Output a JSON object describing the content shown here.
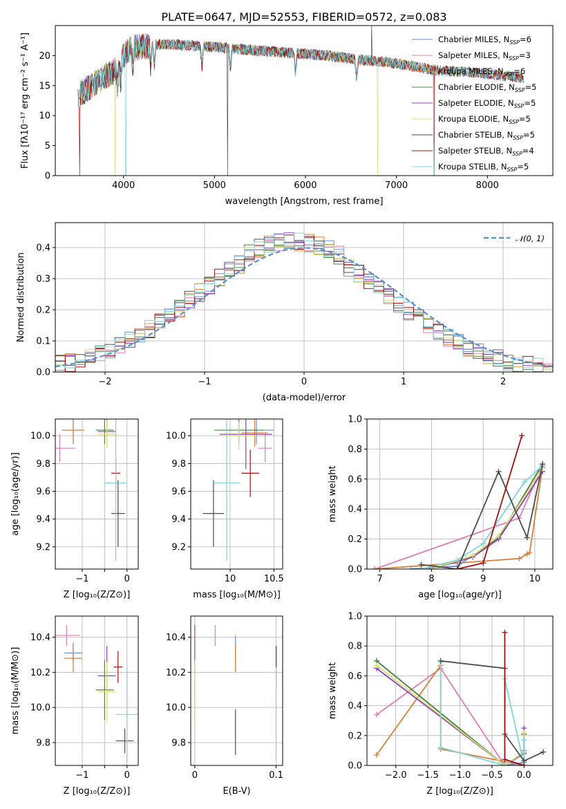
{
  "colors": {
    "Chabrier MILES": "#6a8fd8",
    "Salpeter MILES": "#e07bb4",
    "Kroupa MILES": "#d97f3a",
    "Chabrier ELODIE": "#4b8a3b",
    "Salpeter ELODIE": "#8e3fbf",
    "Kroupa ELODIE": "#d8e070",
    "Chabrier STELIB": "#4d4d4d",
    "Salpeter STELIB": "#a01010",
    "Kroupa STELIB": "#7fd5d8",
    "normal": "#5b8fd4"
  },
  "chart_data": [
    {
      "id": "spectrum",
      "type": "line",
      "title": "PLATE=0647, MJD=52553, FIBERID=0572, z=0.083",
      "xlabel": "wavelength [Angstrom, rest frame]",
      "ylabel": "Flux [fλ10⁻¹⁷ erg cm⁻² s⁻¹ A⁻¹]",
      "xlim": [
        3250,
        8720
      ],
      "ylim": [
        0,
        25
      ],
      "xticks": [
        4000,
        5000,
        6000,
        7000,
        8000
      ],
      "yticks": [
        0,
        5,
        10,
        15,
        20
      ],
      "continuum": {
        "x": [
          3500,
          3700,
          3900,
          4050,
          4300,
          4500,
          4800,
          5000,
          5200,
          5500,
          5800,
          6000,
          6300,
          6600,
          6900,
          7200,
          7400,
          7600,
          7900,
          8200,
          8400
        ],
        "y": [
          13.5,
          15.5,
          17.5,
          21.0,
          21.8,
          21.9,
          21.6,
          21.4,
          21.2,
          20.8,
          20.5,
          20.3,
          19.9,
          19.3,
          18.9,
          18.2,
          17.6,
          17.4,
          17.1,
          16.6,
          16.3
        ]
      },
      "legend": [
        {
          "label": "Chabrier MILES, N",
          "sub": "SSP",
          "tail": "=6"
        },
        {
          "label": "Salpeter MILES, N",
          "sub": "SSP",
          "tail": "=3"
        },
        {
          "label": "Kroupa MILES, N",
          "sub": "SSP",
          "tail": "=6"
        },
        {
          "label": "Chabrier ELODIE, N",
          "sub": "SSP",
          "tail": "=5"
        },
        {
          "label": "Salpeter ELODIE, N",
          "sub": "SSP",
          "tail": "=5"
        },
        {
          "label": "Kroupa ELODIE, N",
          "sub": "SSP",
          "tail": "=5"
        },
        {
          "label": "Chabrier STELIB, N",
          "sub": "SSP",
          "tail": "=5"
        },
        {
          "label": "Salpeter STELIB, N",
          "sub": "SSP",
          "tail": "=4"
        },
        {
          "label": "Kroupa STELIB, N",
          "sub": "SSP",
          "tail": "=5"
        }
      ]
    },
    {
      "id": "residuals",
      "type": "bar",
      "xlabel": "(data-model)/error",
      "ylabel": "Normed distribution",
      "xlim": [
        -2.5,
        2.5
      ],
      "ylim": [
        0,
        0.48
      ],
      "xticks": [
        -2,
        -1,
        0,
        1,
        2
      ],
      "yticks": [
        0.0,
        0.1,
        0.2,
        0.3,
        0.4
      ],
      "legend": "𝒩(0, 1)",
      "bin_width": 0.1
    },
    {
      "id": "age_vs_Z",
      "type": "scatter",
      "xlabel": "Z [log₁₀(Z/Z⊙)]",
      "ylabel": "age  [log₁₀(age/yr)]",
      "xlim": [
        -1.6,
        0.25
      ],
      "ylim": [
        9.04,
        10.12
      ],
      "xticks": [
        -1,
        -0.5,
        0
      ],
      "xticklabels": [
        "−1",
        "",
        "0"
      ],
      "yticks": [
        9.2,
        9.4,
        9.6,
        9.8,
        10.0
      ],
      "points": [
        {
          "model": "Chabrier MILES",
          "x": -1.2,
          "y": 10.04,
          "xe": 0.25,
          "ye": 0.1
        },
        {
          "model": "Salpeter MILES",
          "x": -1.5,
          "y": 9.91,
          "xe": 0.35,
          "ye": 0.1
        },
        {
          "model": "Kroupa MILES",
          "x": -1.2,
          "y": 10.04,
          "xe": 0.25,
          "ye": 0.1
        },
        {
          "model": "Chabrier ELODIE",
          "x": -0.5,
          "y": 10.04,
          "xe": 0.2,
          "ye": 0.1
        },
        {
          "model": "Salpeter ELODIE",
          "x": -0.45,
          "y": 10.03,
          "xe": 0.2,
          "ye": 0.1
        },
        {
          "model": "Kroupa ELODIE",
          "x": -0.45,
          "y": 10.01,
          "xe": 0.2,
          "ye": 0.1
        },
        {
          "model": "Chabrier STELIB",
          "x": -0.2,
          "y": 9.44,
          "xe": 0.15,
          "ye": 0.24
        },
        {
          "model": "Salpeter STELIB",
          "x": -0.25,
          "y": 9.73,
          "xe": 0.1,
          "ye": 0.11
        },
        {
          "model": "Kroupa STELIB",
          "x": -0.25,
          "y": 9.66,
          "xe": 0.25,
          "ye": 0.56
        }
      ]
    },
    {
      "id": "age_vs_mass",
      "type": "scatter",
      "xlabel": "mass [log₁₀(M/M⊙)]",
      "ylabel": "",
      "xlim": [
        9.55,
        10.6
      ],
      "ylim": [
        9.04,
        10.12
      ],
      "xticks": [
        10.0,
        10.5
      ],
      "yticks": [
        9.2,
        9.4,
        9.6,
        9.8,
        10.0
      ],
      "points": [
        {
          "model": "Chabrier MILES",
          "x": 10.3,
          "y": 10.04,
          "xe": 0.2,
          "ye": 0.1
        },
        {
          "model": "Salpeter MILES",
          "x": 10.4,
          "y": 9.91,
          "xe": 0.08,
          "ye": 0.1
        },
        {
          "model": "Kroupa MILES",
          "x": 10.28,
          "y": 10.02,
          "xe": 0.15,
          "ye": 0.1
        },
        {
          "model": "Chabrier ELODIE",
          "x": 10.1,
          "y": 10.04,
          "xe": 0.28,
          "ye": 0.1
        },
        {
          "model": "Salpeter ELODIE",
          "x": 10.18,
          "y": 10.01,
          "xe": 0.3,
          "ye": 0.25
        },
        {
          "model": "Kroupa ELODIE",
          "x": 10.1,
          "y": 10.0,
          "xe": 0.2,
          "ye": 0.1
        },
        {
          "model": "Chabrier STELIB",
          "x": 9.81,
          "y": 9.44,
          "xe": 0.12,
          "ye": 0.24
        },
        {
          "model": "Salpeter STELIB",
          "x": 10.23,
          "y": 9.73,
          "xe": 0.1,
          "ye": 0.17
        },
        {
          "model": "Kroupa STELIB",
          "x": 9.96,
          "y": 9.66,
          "xe": 0.15,
          "ye": 0.56
        }
      ]
    },
    {
      "id": "weight_vs_age",
      "type": "line",
      "xlabel": "age  [log₁₀(age/yr)]",
      "ylabel": "mass weight",
      "xlim": [
        6.75,
        10.35
      ],
      "ylim": [
        0,
        1.0
      ],
      "xticks": [
        7,
        8,
        9,
        10
      ],
      "yticks": [
        0.0,
        0.2,
        0.4,
        0.6,
        0.8,
        1.0
      ],
      "series": [
        {
          "model": "Salpeter MILES",
          "x": [
            6.9,
            9.7,
            10.1
          ],
          "y": [
            0.0,
            0.34,
            0.65
          ]
        },
        {
          "model": "Kroupa MILES",
          "x": [
            6.9,
            9.7,
            9.85,
            9.9,
            10.15
          ],
          "y": [
            0.0,
            0.07,
            0.1,
            0.11,
            0.68
          ]
        },
        {
          "model": "Chabrier MILES",
          "x": [
            7.6,
            8.5,
            9.3,
            10.15
          ],
          "y": [
            0.0,
            0.02,
            0.21,
            0.7
          ]
        },
        {
          "model": "Chabrier ELODIE",
          "x": [
            8.0,
            8.8,
            9.3,
            10.15
          ],
          "y": [
            0.0,
            0.09,
            0.21,
            0.7
          ]
        },
        {
          "model": "Salpeter ELODIE",
          "x": [
            8.0,
            8.8,
            9.3,
            10.15
          ],
          "y": [
            0.0,
            0.08,
            0.2,
            0.65
          ]
        },
        {
          "model": "Kroupa ELODIE",
          "x": [
            8.0,
            8.8,
            9.3,
            10.15
          ],
          "y": [
            0.0,
            0.09,
            0.22,
            0.67
          ]
        },
        {
          "model": "Kroupa STELIB",
          "x": [
            7.8,
            8.5,
            9.0,
            9.8,
            10.15
          ],
          "y": [
            0.0,
            0.06,
            0.17,
            0.58,
            0.69
          ]
        },
        {
          "model": "Chabrier STELIB",
          "x": [
            7.8,
            8.5,
            9.3,
            9.85,
            10.15
          ],
          "y": [
            0.03,
            0.0,
            0.65,
            0.21,
            0.7
          ]
        },
        {
          "model": "Salpeter STELIB",
          "x": [
            8.5,
            9.0,
            9.75
          ],
          "y": [
            0.0,
            0.04,
            0.89
          ]
        }
      ]
    },
    {
      "id": "mass_vs_Z",
      "type": "scatter",
      "xlabel": "Z [log₁₀(Z/Z⊙)]",
      "ylabel": "mass [log₁₀(M/M⊙)]",
      "xlim": [
        -1.6,
        0.25
      ],
      "ylim": [
        9.67,
        10.52
      ],
      "xticks": [
        -1,
        -0.5,
        0
      ],
      "xticklabels": [
        "−1",
        "",
        "0"
      ],
      "yticks": [
        9.8,
        10.0,
        10.2,
        10.4
      ],
      "points": [
        {
          "model": "Chabrier MILES",
          "x": -1.2,
          "y": 10.31,
          "xe": 0.2,
          "ye": 0.06
        },
        {
          "model": "Salpeter MILES",
          "x": -1.35,
          "y": 10.41,
          "xe": 0.3,
          "ye": 0.06
        },
        {
          "model": "Kroupa MILES",
          "x": -1.2,
          "y": 10.28,
          "xe": 0.2,
          "ye": 0.08
        },
        {
          "model": "Chabrier ELODIE",
          "x": -0.5,
          "y": 10.1,
          "xe": 0.2,
          "ye": 0.17
        },
        {
          "model": "Salpeter ELODIE",
          "x": -0.45,
          "y": 10.18,
          "xe": 0.2,
          "ye": 0.17
        },
        {
          "model": "Kroupa ELODIE",
          "x": -0.45,
          "y": 10.09,
          "xe": 0.2,
          "ye": 0.17
        },
        {
          "model": "Chabrier STELIB",
          "x": -0.05,
          "y": 9.81,
          "xe": 0.2,
          "ye": 0.07
        },
        {
          "model": "Salpeter STELIB",
          "x": -0.2,
          "y": 10.23,
          "xe": 0.1,
          "ye": 0.09
        },
        {
          "model": "Kroupa STELIB",
          "x": 0.0,
          "y": 9.96,
          "xe": 0.25,
          "ye": 0.27
        }
      ]
    },
    {
      "id": "mass_vs_EBV",
      "type": "scatter",
      "xlabel": "E(B-V)",
      "ylabel": "",
      "xlim": [
        -0.005,
        0.108
      ],
      "ylim": [
        9.67,
        10.52
      ],
      "xticks": [
        0.0,
        0.1
      ],
      "yticks": [
        9.8,
        10.0,
        10.2,
        10.4
      ],
      "points": [
        {
          "model": "Chabrier MILES",
          "x": 0.05,
          "y": 10.31,
          "ye": 0.1
        },
        {
          "model": "Salpeter MILES",
          "x": 0.025,
          "y": 10.41,
          "ye": 0.06
        },
        {
          "model": "Kroupa MILES",
          "x": 0.05,
          "y": 10.28,
          "ye": 0.08
        },
        {
          "model": "Chabrier ELODIE",
          "x": 0.0,
          "y": 10.1,
          "ye": 0.17
        },
        {
          "model": "Salpeter ELODIE",
          "x": 0.0,
          "y": 10.35,
          "ye": 0.12
        },
        {
          "model": "Kroupa ELODIE",
          "x": 0.0,
          "y": 10.09,
          "ye": 0.18
        },
        {
          "model": "Chabrier STELIB",
          "x": 0.05,
          "y": 9.86,
          "ye": 0.13
        },
        {
          "model": "Salpeter STELIB",
          "x": 0.1,
          "y": 10.23,
          "ye": 0.12
        },
        {
          "model": "Kroupa STELIB",
          "x": 0.1,
          "y": 9.96,
          "ye": 0.27
        }
      ]
    },
    {
      "id": "weight_vs_Z",
      "type": "line",
      "xlabel": "Z [log₁₀(Z/Z⊙)]",
      "ylabel": "mass weight",
      "xlim": [
        -2.45,
        0.45
      ],
      "ylim": [
        0,
        1.0
      ],
      "xticks": [
        -2.0,
        -1.5,
        -1.0,
        -0.5,
        0.0
      ],
      "xticklabels": [
        "−2.0",
        "−1.5",
        "−1.0",
        "−0.5",
        "0.0"
      ],
      "yticks": [
        0.0,
        0.2,
        0.4,
        0.6,
        0.8,
        1.0
      ],
      "series": [
        {
          "model": "Salpeter MILES",
          "x": [
            -2.3,
            -1.3,
            -0.3,
            0.0
          ],
          "y": [
            0.34,
            0.65,
            0.0,
            0.0
          ]
        },
        {
          "model": "Kroupa MILES",
          "x": [
            -2.3,
            -1.3,
            -1.3,
            0.0,
            0.0
          ],
          "y": [
            0.07,
            0.67,
            0.11,
            0.0,
            0.1
          ]
        },
        {
          "model": "Chabrier MILES",
          "x": [
            -2.3,
            -0.3,
            0.0,
            0.0
          ],
          "y": [
            0.7,
            0.0,
            0.02,
            0.21
          ]
        },
        {
          "model": "Chabrier ELODIE",
          "x": [
            -2.3,
            -0.3,
            0.0,
            0.0
          ],
          "y": [
            0.7,
            0.0,
            0.09,
            0.21
          ]
        },
        {
          "model": "Salpeter ELODIE",
          "x": [
            -2.3,
            -0.3,
            0.0,
            0.0
          ],
          "y": [
            0.65,
            0.0,
            0.08,
            0.25
          ]
        },
        {
          "model": "Kroupa ELODIE",
          "x": [
            -2.3,
            -0.3,
            0.0,
            0.0
          ],
          "y": [
            0.67,
            0.0,
            0.09,
            0.22
          ]
        },
        {
          "model": "Kroupa STELIB",
          "x": [
            -1.3,
            -1.3,
            -0.3,
            -0.3,
            0.0,
            0.0
          ],
          "y": [
            0.69,
            0.12,
            0.0,
            0.58,
            0.0,
            0.17
          ]
        },
        {
          "model": "Chabrier STELIB",
          "x": [
            -1.3,
            -0.3,
            -0.3,
            0.0,
            0.3
          ],
          "y": [
            0.7,
            0.65,
            0.21,
            0.03,
            0.09
          ]
        },
        {
          "model": "Salpeter STELIB",
          "x": [
            -0.3,
            -0.3,
            0.0
          ],
          "y": [
            0.89,
            0.04,
            0.0
          ]
        }
      ]
    }
  ]
}
